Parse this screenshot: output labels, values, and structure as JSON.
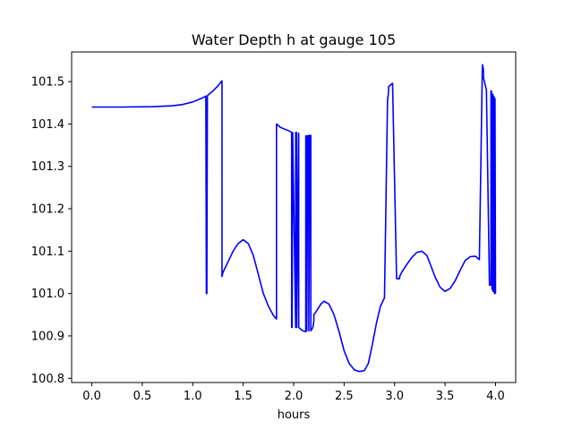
{
  "chart_data": {
    "type": "line",
    "title": "Water Depth h at gauge 105",
    "xlabel": "hours",
    "ylabel": "",
    "xlim": [
      -0.2,
      4.2
    ],
    "ylim": [
      100.79,
      101.57
    ],
    "xticks": [
      0.0,
      0.5,
      1.0,
      1.5,
      2.0,
      2.5,
      3.0,
      3.5,
      4.0
    ],
    "xtick_labels": [
      "0.0",
      "0.5",
      "1.0",
      "1.5",
      "2.0",
      "2.5",
      "3.0",
      "3.5",
      "4.0"
    ],
    "yticks": [
      100.8,
      100.9,
      101.0,
      101.1,
      101.2,
      101.3,
      101.4,
      101.5
    ],
    "ytick_labels": [
      "100.8",
      "100.9",
      "101.0",
      "101.1",
      "101.2",
      "101.3",
      "101.4",
      "101.5"
    ],
    "grid": false,
    "legend": "none",
    "series": [
      {
        "color": "#0000ff",
        "x": [
          0.0,
          0.3,
          0.6,
          0.8,
          0.9,
          1.0,
          1.06,
          1.11,
          1.13,
          1.135,
          1.14,
          1.145,
          1.15,
          1.2,
          1.25,
          1.29,
          1.29,
          1.3,
          1.35,
          1.4,
          1.45,
          1.5,
          1.55,
          1.6,
          1.65,
          1.7,
          1.75,
          1.8,
          1.83,
          1.83,
          1.87,
          1.92,
          1.97,
          1.98,
          1.98,
          1.985,
          1.99,
          1.99,
          2.02,
          2.02,
          2.03,
          2.03,
          2.05,
          2.05,
          2.09,
          2.12,
          2.12,
          2.13,
          2.13,
          2.14,
          2.15,
          2.15,
          2.16,
          2.17,
          2.17,
          2.19,
          2.2,
          2.2,
          2.23,
          2.27,
          2.3,
          2.35,
          2.4,
          2.45,
          2.5,
          2.55,
          2.6,
          2.65,
          2.7,
          2.74,
          2.78,
          2.82,
          2.86,
          2.9,
          2.93,
          2.94,
          2.94,
          2.98,
          3.02,
          3.05,
          3.05,
          3.07,
          3.12,
          3.17,
          3.22,
          3.27,
          3.32,
          3.36,
          3.4,
          3.45,
          3.5,
          3.55,
          3.6,
          3.65,
          3.7,
          3.75,
          3.8,
          3.84,
          3.87,
          3.88,
          3.88,
          3.91,
          3.94,
          3.955,
          3.955,
          3.96,
          3.965,
          3.965,
          3.97,
          3.975,
          3.975,
          3.98,
          3.985,
          3.985,
          3.99,
          3.995,
          3.995,
          4.0
        ],
        "y": [
          101.44,
          101.44,
          101.441,
          101.443,
          101.446,
          101.452,
          101.458,
          101.463,
          101.466,
          101.0,
          101.0,
          101.466,
          101.468,
          101.478,
          101.49,
          101.502,
          101.04,
          101.05,
          101.075,
          101.1,
          101.118,
          101.127,
          101.118,
          101.09,
          101.045,
          101.0,
          100.97,
          100.948,
          100.94,
          101.4,
          101.392,
          101.387,
          101.382,
          101.38,
          100.92,
          100.92,
          101.38,
          101.38,
          100.92,
          101.38,
          101.38,
          100.92,
          101.378,
          100.92,
          100.912,
          100.91,
          101.372,
          101.372,
          100.912,
          101.372,
          101.373,
          100.912,
          101.373,
          101.373,
          100.912,
          100.92,
          100.935,
          100.95,
          100.96,
          100.975,
          100.982,
          100.975,
          100.95,
          100.91,
          100.865,
          100.835,
          100.82,
          100.816,
          100.818,
          100.835,
          100.88,
          100.93,
          100.97,
          100.99,
          101.455,
          101.475,
          101.488,
          101.496,
          101.035,
          101.035,
          101.04,
          101.05,
          101.068,
          101.085,
          101.097,
          101.1,
          101.09,
          101.065,
          101.04,
          101.015,
          101.005,
          101.012,
          101.03,
          101.055,
          101.078,
          101.087,
          101.088,
          101.08,
          101.54,
          101.53,
          101.51,
          101.48,
          101.02,
          101.02,
          101.478,
          101.478,
          101.01,
          101.01,
          101.47,
          101.47,
          101.005,
          101.005,
          101.465,
          101.465,
          101.0,
          101.0,
          101.46,
          101.0
        ]
      }
    ]
  }
}
